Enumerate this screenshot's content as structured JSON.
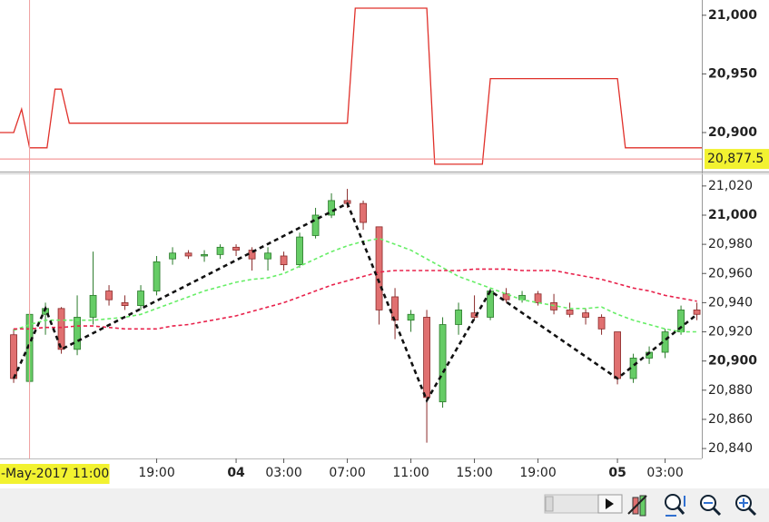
{
  "chart_data": [
    {
      "type": "line",
      "xlim": [
        -0.86,
        43.31
      ],
      "ylim": [
        20867.5,
        21013
      ],
      "yticks": [
        {
          "value": 20900,
          "label": "20,900"
        },
        {
          "value": 20950,
          "label": "20,950"
        },
        {
          "value": 21000,
          "label": "21,000"
        }
      ],
      "last_value": {
        "value": 20877.5,
        "label": "20,877.5"
      },
      "series": [
        {
          "color": "#e0302a",
          "x": [
            -0.86,
            0,
            0.5,
            1,
            2.1,
            2.6,
            3,
            3.5,
            21,
            21.5,
            26,
            26.5,
            29.5,
            30,
            38,
            38.5,
            43.31
          ],
          "values": [
            20900,
            20900,
            20920,
            20887,
            20887,
            20937,
            20937,
            20908,
            20908,
            21006,
            21006,
            20873,
            20873,
            20946,
            20946,
            20887,
            20887
          ]
        }
      ]
    },
    {
      "type": "candlestick",
      "xlim": [
        -0.86,
        43.31
      ],
      "ylim": [
        20833.2,
        21028
      ],
      "yticks": [
        {
          "value": 20840,
          "label": "20,840"
        },
        {
          "value": 20860,
          "label": "20,860"
        },
        {
          "value": 20880,
          "label": "20,880"
        },
        {
          "value": 20900,
          "label": "20,900"
        },
        {
          "value": 20920,
          "label": "20,920"
        },
        {
          "value": 20940,
          "label": "20,940"
        },
        {
          "value": 20960,
          "label": "20,960"
        },
        {
          "value": 20980,
          "label": "20,980"
        },
        {
          "value": 21000,
          "label": "21,000"
        },
        {
          "value": 21020,
          "label": "21,020"
        }
      ],
      "xticks": [
        {
          "value": 9,
          "label": "19:00"
        },
        {
          "value": 14,
          "label": "04"
        },
        {
          "value": 17,
          "label": "03:00"
        },
        {
          "value": 21,
          "label": "07:00"
        },
        {
          "value": 25,
          "label": "11:00"
        },
        {
          "value": 29,
          "label": "15:00"
        },
        {
          "value": 33,
          "label": "19:00"
        },
        {
          "value": 38,
          "label": "05"
        },
        {
          "value": 41,
          "label": "03:00"
        }
      ],
      "cursor": {
        "value": 1,
        "label": "-May-2017 11:00"
      },
      "up_color": "#66cc66",
      "down_color": "#e07070",
      "open": [
        20918,
        20886,
        20932,
        20936,
        20908,
        20930,
        20948,
        20940,
        20938,
        20948,
        20970,
        20974,
        20972,
        20973,
        20978,
        20976,
        20970,
        20972,
        20966,
        20986,
        21000,
        21010,
        21008,
        20992,
        20944,
        20928,
        20930,
        20872,
        20925,
        20933,
        20930,
        20946,
        20942,
        20946,
        20940,
        20935,
        20933,
        20930,
        20920,
        20888,
        20902,
        20906,
        20920,
        20935
      ],
      "high": [
        20922,
        20935,
        20940,
        20937,
        20945,
        20975,
        20952,
        20945,
        20952,
        20972,
        20978,
        20976,
        20976,
        20980,
        20980,
        20978,
        20978,
        20975,
        20988,
        21005,
        21015,
        21018,
        21010,
        20992,
        20950,
        20935,
        20935,
        20930,
        20940,
        20945,
        20950,
        20950,
        20948,
        20948,
        20946,
        20940,
        20936,
        20932,
        20920,
        20905,
        20910,
        20922,
        20938,
        20940
      ],
      "low": [
        20885,
        20884,
        20918,
        20905,
        20904,
        20925,
        20938,
        20935,
        20935,
        20945,
        20966,
        20970,
        20968,
        20970,
        20972,
        20962,
        20962,
        20962,
        20964,
        20984,
        20998,
        21005,
        20990,
        20925,
        20915,
        20920,
        20844,
        20868,
        20918,
        20928,
        20928,
        20940,
        20940,
        20938,
        20932,
        20930,
        20925,
        20918,
        20884,
        20885,
        20898,
        20902,
        20918,
        20928
      ],
      "close": [
        20888,
        20932,
        20936,
        20908,
        20930,
        20945,
        20942,
        20938,
        20948,
        20968,
        20974,
        20972,
        20973,
        20978,
        20976,
        20970,
        20974,
        20966,
        20985,
        21000,
        21010,
        21008,
        20995,
        20935,
        20928,
        20932,
        20875,
        20925,
        20935,
        20930,
        20948,
        20942,
        20945,
        20940,
        20935,
        20932,
        20930,
        20922,
        20888,
        20902,
        20906,
        20920,
        20935,
        20932
      ],
      "series": [
        {
          "color": "#66ee66",
          "values": [
            20921,
            20925,
            20928,
            20928,
            20928,
            20928,
            20929,
            20930,
            20932,
            20936,
            20940,
            20944,
            20948,
            20951,
            20954,
            20956,
            20957,
            20960,
            20965,
            20970,
            20975,
            20979,
            20982,
            20984,
            20980,
            20976,
            20970,
            20964,
            20958,
            20954,
            20950,
            20946,
            20942,
            20940,
            20938,
            20936,
            20936,
            20937,
            20932,
            20928,
            20925,
            20922,
            20920,
            20920
          ]
        },
        {
          "color": "#e8204a",
          "values": [
            20922,
            20922,
            20923,
            20923,
            20924,
            20924,
            20923,
            20922,
            20922,
            20922,
            20924,
            20925,
            20927,
            20929,
            20931,
            20934,
            20937,
            20940,
            20944,
            20948,
            20952,
            20955,
            20958,
            20961,
            20962,
            20962,
            20962,
            20962,
            20962,
            20963,
            20963,
            20963,
            20962,
            20962,
            20962,
            20960,
            20958,
            20956,
            20953,
            20950,
            20948,
            20945,
            20943,
            20941
          ]
        }
      ],
      "zigzag": {
        "color": "#111111",
        "x": [
          0,
          2,
          3,
          21,
          26,
          30,
          38,
          43
        ],
        "values": [
          20888,
          20936,
          20908,
          21008,
          20873,
          20948,
          20888,
          20932
        ]
      }
    }
  ]
}
